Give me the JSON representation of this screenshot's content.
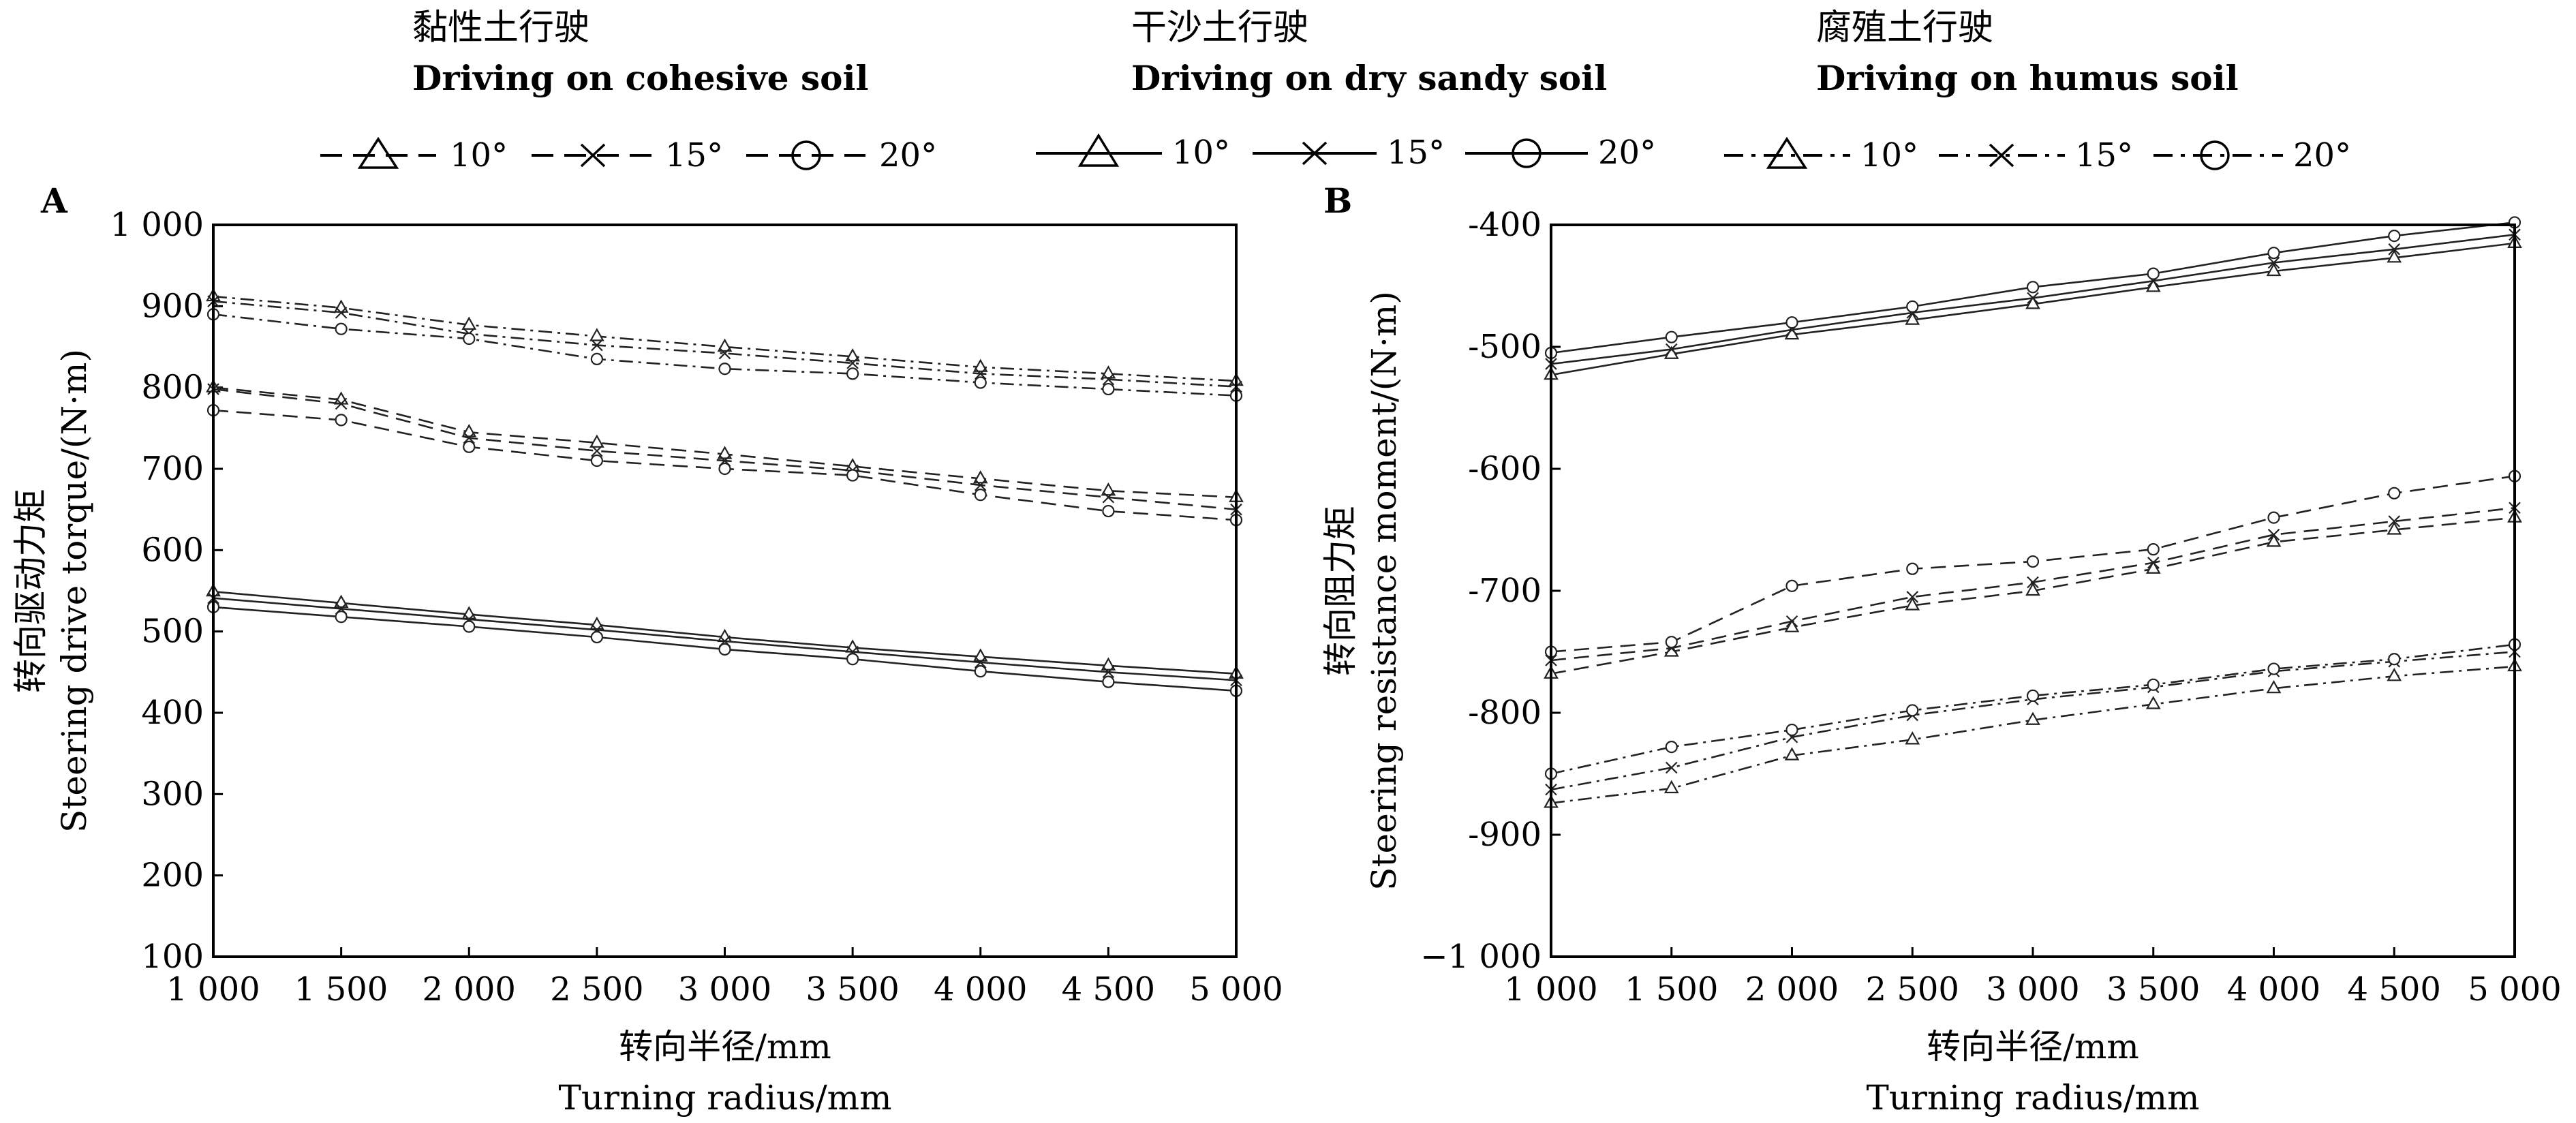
{
  "legend": {
    "groups": [
      {
        "cn": "黏性土行驶",
        "en": "Driving on cohesive soil",
        "style": "dashed",
        "entries": [
          {
            "label": "10°",
            "marker": "triangle"
          },
          {
            "label": "15°",
            "marker": "cross"
          },
          {
            "label": "20°",
            "marker": "circle"
          }
        ]
      },
      {
        "cn": "干沙土行驶",
        "en": "Driving on dry sandy soil",
        "style": "solid",
        "entries": [
          {
            "label": "10°",
            "marker": "triangle"
          },
          {
            "label": "15°",
            "marker": "cross"
          },
          {
            "label": "20°",
            "marker": "circle"
          }
        ]
      },
      {
        "cn": "腐殖土行驶",
        "en": "Driving on humus soil",
        "style": "dashdot",
        "entries": [
          {
            "label": "10°",
            "marker": "triangle"
          },
          {
            "label": "15°",
            "marker": "cross"
          },
          {
            "label": "20°",
            "marker": "circle"
          }
        ]
      }
    ]
  },
  "chart_data": [
    {
      "panel": "A",
      "type": "line",
      "ylabel_cn": "转向驱动力矩",
      "ylabel_en": "Steering drive torque/(N·m)",
      "xlabel_cn": "转向半径/mm",
      "xlabel_en": "Turning radius/mm",
      "x": [
        1000,
        1500,
        2000,
        2500,
        3000,
        3500,
        4000,
        4500,
        5000
      ],
      "xtick_labels": [
        "1 000",
        "1 500",
        "2 000",
        "2 500",
        "3 000",
        "3 500",
        "4 000",
        "4 500",
        "5 000"
      ],
      "ylim": [
        100,
        1000
      ],
      "yticks": [
        100,
        200,
        300,
        400,
        500,
        600,
        700,
        800,
        900,
        1000
      ],
      "ytick_labels": [
        "100",
        "200",
        "300",
        "400",
        "500",
        "600",
        "700",
        "800",
        "900",
        "1 000"
      ],
      "series": [
        {
          "soil": "cohesive",
          "angle": "10°",
          "style": "dashed",
          "marker": "triangle",
          "values": [
            800,
            785,
            745,
            732,
            718,
            703,
            688,
            673,
            665
          ]
        },
        {
          "soil": "cohesive",
          "angle": "15°",
          "style": "dashed",
          "marker": "cross",
          "values": [
            798,
            780,
            738,
            722,
            710,
            698,
            680,
            665,
            650
          ]
        },
        {
          "soil": "cohesive",
          "angle": "20°",
          "style": "dashed",
          "marker": "circle",
          "values": [
            772,
            760,
            727,
            710,
            700,
            692,
            668,
            648,
            637
          ]
        },
        {
          "soil": "dry sandy",
          "angle": "10°",
          "style": "solid",
          "marker": "triangle",
          "values": [
            549,
            535,
            521,
            508,
            493,
            480,
            469,
            458,
            448
          ]
        },
        {
          "soil": "dry sandy",
          "angle": "15°",
          "style": "solid",
          "marker": "cross",
          "values": [
            541,
            528,
            515,
            502,
            488,
            475,
            462,
            450,
            440
          ]
        },
        {
          "soil": "dry sandy",
          "angle": "20°",
          "style": "solid",
          "marker": "circle",
          "values": [
            530,
            518,
            506,
            493,
            478,
            466,
            451,
            438,
            427
          ]
        },
        {
          "soil": "humus",
          "angle": "10°",
          "style": "dashdot",
          "marker": "triangle",
          "values": [
            912,
            898,
            877,
            863,
            850,
            838,
            825,
            817,
            808
          ]
        },
        {
          "soil": "humus",
          "angle": "15°",
          "style": "dashdot",
          "marker": "cross",
          "values": [
            906,
            892,
            866,
            852,
            842,
            830,
            817,
            810,
            801
          ]
        },
        {
          "soil": "humus",
          "angle": "20°",
          "style": "dashdot",
          "marker": "circle",
          "values": [
            890,
            872,
            860,
            835,
            823,
            817,
            806,
            798,
            790
          ]
        }
      ]
    },
    {
      "panel": "B",
      "type": "line",
      "ylabel_cn": "转向阻力矩",
      "ylabel_en": "Steering resistance moment/(N·m)",
      "xlabel_cn": "转向半径/mm",
      "xlabel_en": "Turning radius/mm",
      "x": [
        1000,
        1500,
        2000,
        2500,
        3000,
        3500,
        4000,
        4500,
        5000
      ],
      "xtick_labels": [
        "1 000",
        "1 500",
        "2 000",
        "2 500",
        "3 000",
        "3 500",
        "4 000",
        "4 500",
        "5 000"
      ],
      "ylim": [
        -1000,
        -400
      ],
      "yticks": [
        -1000,
        -900,
        -800,
        -700,
        -600,
        -500,
        -400
      ],
      "ytick_labels": [
        "−1 000",
        "-900",
        "-800",
        "-700",
        "-600",
        "-500",
        "-400"
      ],
      "series": [
        {
          "soil": "cohesive",
          "angle": "10°",
          "style": "dashed",
          "marker": "triangle",
          "values": [
            -768,
            -750,
            -730,
            -712,
            -700,
            -682,
            -660,
            -650,
            -640
          ]
        },
        {
          "soil": "cohesive",
          "angle": "15°",
          "style": "dashed",
          "marker": "cross",
          "values": [
            -757,
            -747,
            -725,
            -705,
            -693,
            -677,
            -654,
            -643,
            -632
          ]
        },
        {
          "soil": "cohesive",
          "angle": "20°",
          "style": "dashed",
          "marker": "circle",
          "values": [
            -750,
            -742,
            -696,
            -682,
            -676,
            -666,
            -640,
            -620,
            -606
          ]
        },
        {
          "soil": "dry sandy",
          "angle": "10°",
          "style": "solid",
          "marker": "triangle",
          "values": [
            -523,
            -506,
            -490,
            -478,
            -465,
            -451,
            -438,
            -427,
            -415
          ]
        },
        {
          "soil": "dry sandy",
          "angle": "15°",
          "style": "solid",
          "marker": "cross",
          "values": [
            -514,
            -502,
            -486,
            -472,
            -460,
            -446,
            -431,
            -420,
            -408
          ]
        },
        {
          "soil": "dry sandy",
          "angle": "20°",
          "style": "solid",
          "marker": "circle",
          "values": [
            -505,
            -492,
            -480,
            -467,
            -451,
            -440,
            -423,
            -409,
            -398
          ]
        },
        {
          "soil": "humus",
          "angle": "10°",
          "style": "dashdot",
          "marker": "triangle",
          "values": [
            -874,
            -862,
            -835,
            -822,
            -806,
            -793,
            -780,
            -770,
            -762
          ]
        },
        {
          "soil": "humus",
          "angle": "15°",
          "style": "dashdot",
          "marker": "cross",
          "values": [
            -863,
            -845,
            -820,
            -802,
            -789,
            -779,
            -766,
            -758,
            -750
          ]
        },
        {
          "soil": "humus",
          "angle": "20°",
          "style": "dashdot",
          "marker": "circle",
          "values": [
            -850,
            -828,
            -814,
            -798,
            -786,
            -777,
            -764,
            -756,
            -744
          ]
        }
      ]
    }
  ]
}
